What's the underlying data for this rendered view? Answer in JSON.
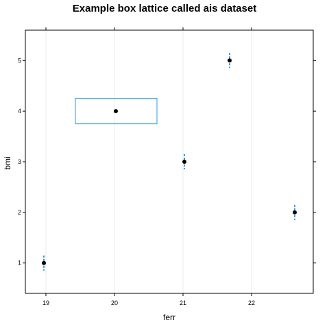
{
  "chart_data": {
    "type": "box",
    "title": "Example box lattice called ais dataset",
    "xlabel": "ferr",
    "ylabel": "bmi",
    "xlim": [
      18.7,
      22.9
    ],
    "ylim": [
      0.4,
      5.6
    ],
    "xticks": [
      19,
      20,
      21,
      22
    ],
    "yticks": [
      1,
      2,
      3,
      4,
      5
    ],
    "vertical_grid": true,
    "colors": {
      "box": "#2b9bf0",
      "median": "#000000",
      "grid": "#ebebeb",
      "frame": "#000000"
    },
    "boxes": [
      {
        "category": 1,
        "min": 18.97,
        "q1": 18.97,
        "median": 18.97,
        "q3": 18.97,
        "max": 18.97
      },
      {
        "category": 2,
        "min": 22.63,
        "q1": 22.63,
        "median": 22.63,
        "q3": 22.63,
        "max": 22.63
      },
      {
        "category": 3,
        "min": 21.02,
        "q1": 21.02,
        "median": 21.02,
        "q3": 21.02,
        "max": 21.02
      },
      {
        "category": 4,
        "min": 19.43,
        "q1": 19.43,
        "median": 20.02,
        "q3": 20.62,
        "max": 20.62
      },
      {
        "category": 5,
        "min": 21.68,
        "q1": 21.68,
        "median": 21.68,
        "q3": 21.68,
        "max": 21.68
      }
    ]
  }
}
